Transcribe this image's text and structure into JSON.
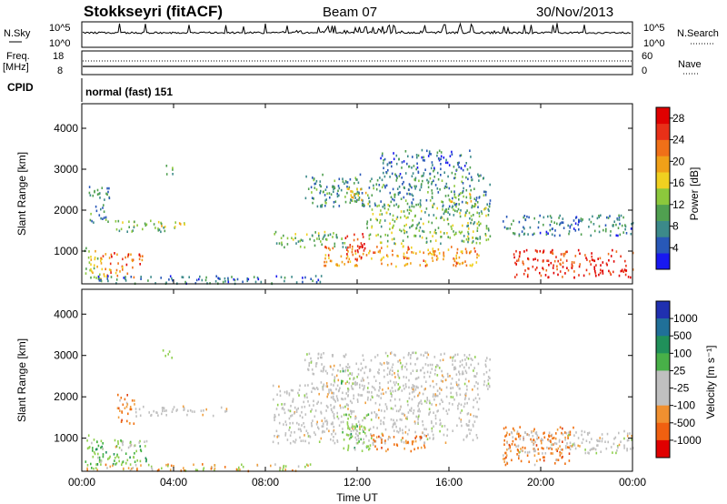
{
  "header": {
    "station": "Stokkseyri (fitACF)",
    "beam": "Beam 07",
    "date": "30/Nov/2013"
  },
  "summary_panel": {
    "nsky_label": "N.Sky",
    "nsky_ticks": [
      "10^5",
      "10^0"
    ],
    "nsearch_label": "N.Search",
    "nsearch_ticks": [
      "10^5",
      "10^0"
    ],
    "freq_label": "Freq.",
    "freq_unit": "[MHz]",
    "freq_ticks": [
      "18",
      "8"
    ],
    "nave_label": "Nave",
    "nave_ticks": [
      "60",
      "0"
    ],
    "cpid_label": "CPID",
    "cpid_value": "normal (fast) 151"
  },
  "colors": {
    "power_scale": [
      "#1818f0",
      "#2858b8",
      "#3c8a8a",
      "#50a050",
      "#8cc83c",
      "#f0d020",
      "#f0a018",
      "#f07018",
      "#e83018",
      "#e00000"
    ],
    "velocity_scale": [
      "#2030b0",
      "#2070a0",
      "#20905a",
      "#40b040",
      "#90d050",
      "#c0c0c0",
      "#c8c8c8",
      "#f0a040",
      "#f07010",
      "#e04010",
      "#e00000"
    ]
  },
  "chart_data": [
    {
      "type": "heatmap",
      "title": "",
      "xlabel": "",
      "ylabel": "Slant Range [km]",
      "xlim": [
        0,
        24
      ],
      "ylim": [
        200,
        4600
      ],
      "x_ticks": [],
      "y_ticks": [
        "1000",
        "2000",
        "3000",
        "4000"
      ],
      "colorbar_label": "Power [dB]",
      "colorbar_ticks": [
        "4",
        "8",
        "12",
        "16",
        "20",
        "24",
        "28"
      ],
      "colorbar_range": [
        0,
        30
      ],
      "blobs": [
        {
          "t0": 0.1,
          "t1": 0.9,
          "r0": 250,
          "r1": 1100,
          "v": 14
        },
        {
          "t0": 0.8,
          "t1": 2.7,
          "r0": 650,
          "r1": 980,
          "v": 24
        },
        {
          "t0": 0.9,
          "t1": 2.3,
          "r0": 380,
          "r1": 650,
          "v": 20
        },
        {
          "t0": 1.2,
          "t1": 3.6,
          "r0": 1500,
          "r1": 1780,
          "v": 11
        },
        {
          "t0": 3.3,
          "t1": 4.5,
          "r0": 1580,
          "r1": 1760,
          "v": 16
        },
        {
          "t0": 0.3,
          "t1": 1.2,
          "r0": 1700,
          "r1": 2600,
          "v": 8
        },
        {
          "t0": 3.6,
          "t1": 4.0,
          "r0": 2900,
          "r1": 3150,
          "v": 9
        },
        {
          "t0": 8.3,
          "t1": 11.5,
          "r0": 1100,
          "r1": 1500,
          "v": 12
        },
        {
          "t0": 10.5,
          "t1": 17.3,
          "r0": 650,
          "r1": 1150,
          "v": 20
        },
        {
          "t0": 11.4,
          "t1": 12.4,
          "r0": 800,
          "r1": 1450,
          "v": 26
        },
        {
          "t0": 12.4,
          "t1": 17.8,
          "r0": 1200,
          "r1": 2200,
          "v": 12
        },
        {
          "t0": 9.7,
          "t1": 17.8,
          "r0": 2100,
          "r1": 2900,
          "v": 8
        },
        {
          "t0": 13.0,
          "t1": 17.0,
          "r0": 2900,
          "r1": 3500,
          "v": 6
        },
        {
          "t0": 11.3,
          "t1": 12.5,
          "r0": 2250,
          "r1": 2600,
          "v": 16
        },
        {
          "t0": 16.0,
          "t1": 17.0,
          "r0": 2200,
          "r1": 2500,
          "v": 16
        },
        {
          "t0": 18.2,
          "t1": 24.0,
          "r0": 1400,
          "r1": 1900,
          "v": 7
        },
        {
          "t0": 18.8,
          "t1": 24.0,
          "r0": 380,
          "r1": 1050,
          "v": 26
        },
        {
          "t0": 0.2,
          "t1": 10.5,
          "r0": 230,
          "r1": 420,
          "v": 6
        }
      ]
    },
    {
      "type": "heatmap",
      "title": "",
      "xlabel": "Time UT",
      "ylabel": "Slant Range [km]",
      "xlim": [
        0,
        24
      ],
      "ylim": [
        200,
        4600
      ],
      "x_ticks": [
        "00:00",
        "04:00",
        "08:00",
        "12:00",
        "16:00",
        "20:00",
        "00:00"
      ],
      "y_ticks": [
        "1000",
        "2000",
        "3000",
        "4000"
      ],
      "colorbar_label": "Velocity [m s⁻¹]",
      "colorbar_ticks": [
        "1000",
        "500",
        "100",
        "25",
        "-25",
        "-100",
        "-500",
        "-1000"
      ],
      "blobs": [
        {
          "t0": 0.1,
          "t1": 0.9,
          "r0": 250,
          "r1": 1100,
          "v": "pos"
        },
        {
          "t0": 0.6,
          "t1": 2.8,
          "r0": 380,
          "r1": 980,
          "v": "pos"
        },
        {
          "t0": 1.3,
          "t1": 2.6,
          "r0": 800,
          "r1": 1000,
          "v": "grey"
        },
        {
          "t0": 1.5,
          "t1": 2.3,
          "r0": 1300,
          "r1": 2100,
          "v": "neg"
        },
        {
          "t0": 2.3,
          "t1": 6.3,
          "r0": 1550,
          "r1": 1800,
          "v": "grey"
        },
        {
          "t0": 3.4,
          "t1": 3.9,
          "r0": 2950,
          "r1": 3150,
          "v": "pos"
        },
        {
          "t0": 8.3,
          "t1": 17.3,
          "r0": 900,
          "r1": 2300,
          "v": "grey"
        },
        {
          "t0": 11.3,
          "t1": 12.6,
          "r0": 700,
          "r1": 1600,
          "v": "pos"
        },
        {
          "t0": 12.6,
          "t1": 15.0,
          "r0": 700,
          "r1": 1100,
          "v": "neg"
        },
        {
          "t0": 9.7,
          "t1": 17.8,
          "r0": 2200,
          "r1": 3100,
          "v": "grey"
        },
        {
          "t0": 11.2,
          "t1": 12.0,
          "r0": 2300,
          "r1": 2700,
          "v": "pos"
        },
        {
          "t0": 18.3,
          "t1": 21.5,
          "r0": 380,
          "r1": 1300,
          "v": "neg"
        },
        {
          "t0": 18.5,
          "t1": 24.0,
          "r0": 650,
          "r1": 1200,
          "v": "grey"
        },
        {
          "t0": 0.2,
          "t1": 10.0,
          "r0": 230,
          "r1": 400,
          "v": "mix"
        }
      ]
    }
  ]
}
